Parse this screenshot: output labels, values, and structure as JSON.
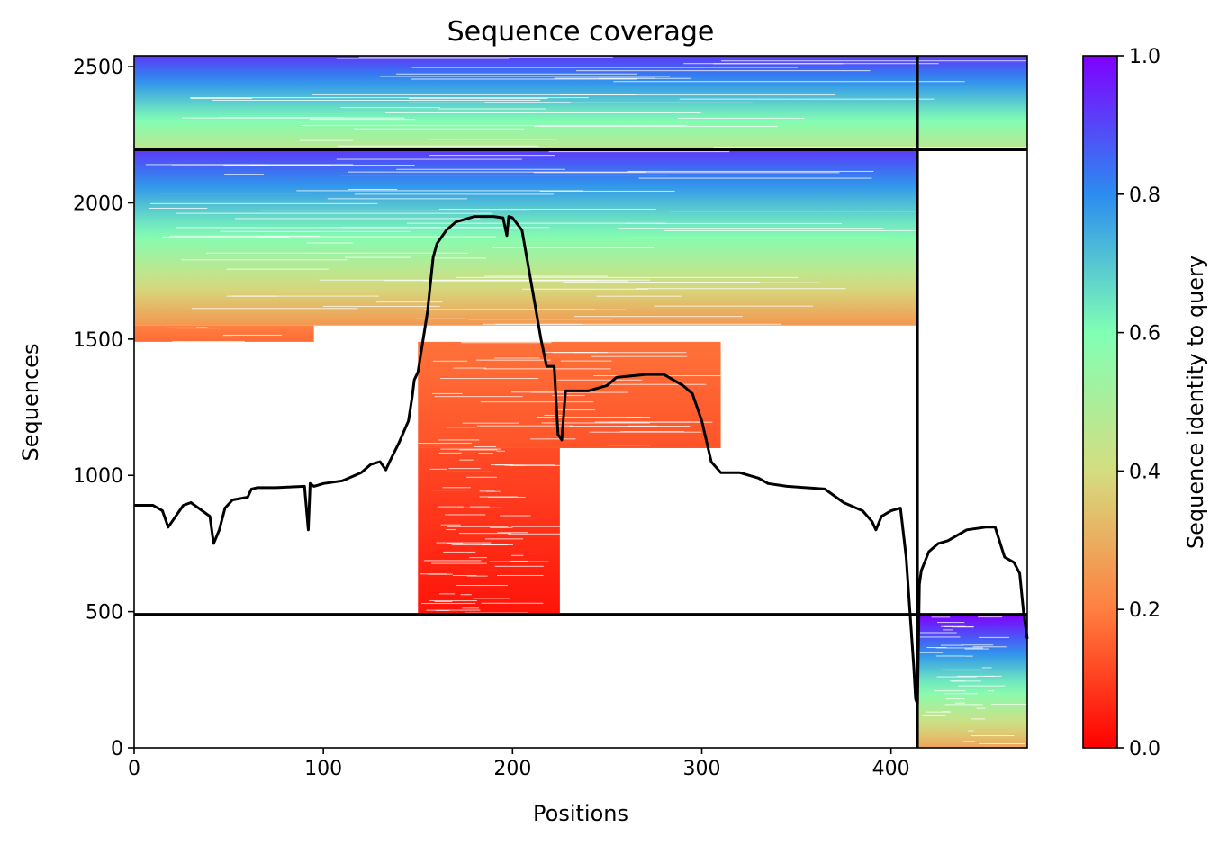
{
  "chart_data": {
    "type": "heatmap",
    "title": "Sequence coverage",
    "xlabel": "Positions",
    "ylabel": "Sequences",
    "xlim": [
      0,
      472
    ],
    "ylim": [
      0,
      2540
    ],
    "xticks": [
      0,
      100,
      200,
      300,
      400
    ],
    "yticks": [
      0,
      500,
      1000,
      1500,
      2000,
      2500
    ],
    "colorbar": {
      "label": "Sequence identity to query",
      "range": [
        0.0,
        1.0
      ],
      "ticks": [
        0.0,
        0.2,
        0.4,
        0.6,
        0.8,
        1.0
      ],
      "colormap": "rainbow",
      "colors": [
        "#ff0000",
        "#ff7f40",
        "#d4dd80",
        "#80ffb4",
        "#2b8cf0",
        "#8000ff"
      ]
    },
    "domain_boundaries": {
      "vertical_x": 414,
      "horizontal_y": [
        490,
        2195
      ]
    },
    "blocks": [
      {
        "name": "domain-A-and-B",
        "x_range": [
          0,
          472
        ],
        "y_range": [
          2195,
          2540
        ],
        "identity_bottom_top": [
          0.45,
          0.92
        ]
      },
      {
        "name": "domain-A",
        "x_range": [
          0,
          414
        ],
        "y_range": [
          1550,
          2195
        ],
        "identity_bottom_top": [
          0.25,
          0.92
        ]
      },
      {
        "name": "domain-B",
        "x_range": [
          414,
          472
        ],
        "y_range": [
          0,
          490
        ],
        "identity_bottom_top": [
          0.28,
          1.0
        ]
      },
      {
        "name": "partial-region-N",
        "x_range": [
          0,
          95
        ],
        "y_range": [
          1490,
          1550
        ],
        "identity_bottom_top": [
          0.17,
          0.2
        ]
      },
      {
        "name": "partial-region-mid",
        "x_range": [
          150,
          310
        ],
        "y_range": [
          1100,
          1490
        ],
        "identity_bottom_top": [
          0.13,
          0.18
        ]
      },
      {
        "name": "partial-region-core",
        "x_range": [
          150,
          225
        ],
        "y_range": [
          490,
          1100
        ],
        "identity_bottom_top": [
          0.03,
          0.12
        ]
      }
    ],
    "coverage_line": {
      "color": "#000000",
      "x": [
        0,
        10,
        15,
        18,
        22,
        26,
        30,
        40,
        42,
        45,
        48,
        52,
        60,
        62,
        65,
        75,
        90,
        92,
        93,
        95,
        100,
        110,
        120,
        125,
        130,
        133,
        135,
        140,
        145,
        147,
        148,
        150,
        155,
        158,
        160,
        165,
        170,
        180,
        190,
        195,
        197,
        198,
        200,
        205,
        210,
        215,
        218,
        222,
        224,
        226,
        228,
        232,
        240,
        250,
        255,
        270,
        280,
        290,
        295,
        300,
        305,
        310,
        320,
        330,
        335,
        345,
        355,
        365,
        375,
        385,
        390,
        392,
        395,
        400,
        405,
        408,
        410,
        412,
        413,
        414,
        415,
        416,
        420,
        425,
        430,
        440,
        450,
        455,
        460,
        465,
        468,
        470,
        472
      ],
      "y": [
        890,
        890,
        870,
        810,
        850,
        890,
        900,
        850,
        750,
        800,
        880,
        910,
        920,
        950,
        955,
        955,
        960,
        800,
        970,
        960,
        970,
        980,
        1010,
        1040,
        1050,
        1020,
        1050,
        1120,
        1200,
        1290,
        1350,
        1380,
        1600,
        1800,
        1850,
        1900,
        1930,
        1950,
        1950,
        1945,
        1880,
        1950,
        1945,
        1900,
        1700,
        1500,
        1400,
        1400,
        1150,
        1130,
        1310,
        1310,
        1310,
        1330,
        1360,
        1370,
        1370,
        1330,
        1300,
        1200,
        1050,
        1010,
        1010,
        990,
        970,
        960,
        955,
        950,
        900,
        870,
        830,
        800,
        850,
        870,
        880,
        700,
        500,
        300,
        180,
        160,
        600,
        650,
        720,
        750,
        760,
        800,
        810,
        810,
        700,
        680,
        640,
        500,
        400
      ]
    }
  }
}
